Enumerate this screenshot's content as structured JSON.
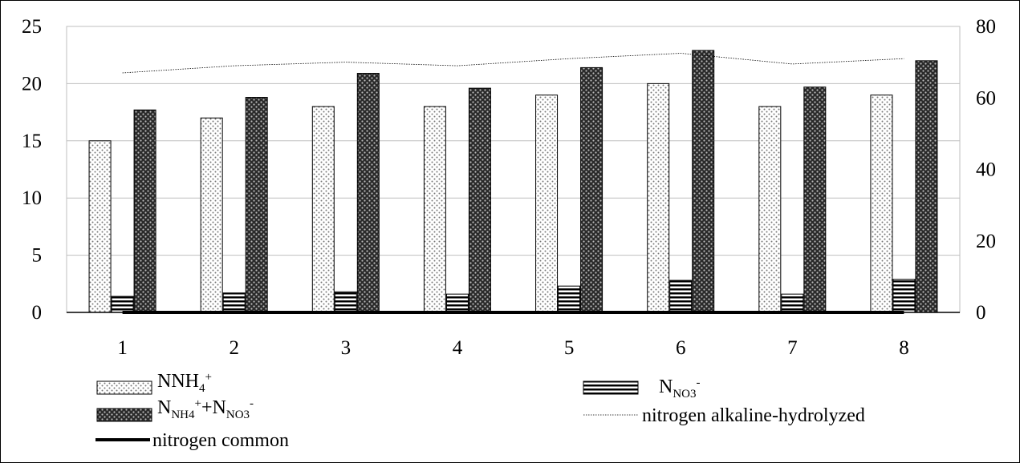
{
  "chart_data": {
    "type": "bar",
    "categories": [
      "1",
      "2",
      "3",
      "4",
      "5",
      "6",
      "7",
      "8"
    ],
    "y_left": {
      "ylim": [
        0,
        25
      ],
      "ticks": [
        "0",
        "5",
        "10",
        "15",
        "20",
        "25"
      ]
    },
    "y_right": {
      "ylim": [
        0,
        80
      ],
      "ticks": [
        "0",
        "20",
        "40",
        "60",
        "80"
      ]
    },
    "grid": "horizontal",
    "legend_position": "bottom",
    "series": [
      {
        "key": "nh4",
        "name": "NNH4+",
        "type": "bar",
        "axis": "left",
        "pattern": "dots-light",
        "values": [
          15,
          17,
          18,
          18,
          19,
          20,
          18,
          19
        ]
      },
      {
        "key": "no3",
        "name": "NNO3-",
        "type": "bar",
        "axis": "left",
        "pattern": "stripes",
        "values": [
          1.4,
          1.7,
          1.8,
          1.6,
          2.3,
          2.8,
          1.6,
          2.9
        ]
      },
      {
        "key": "sum",
        "name": "NNH4++NNO3-",
        "type": "bar",
        "axis": "left",
        "pattern": "dots-dark",
        "values": [
          17.7,
          18.8,
          20.9,
          19.6,
          21.4,
          22.9,
          19.7,
          22.0
        ]
      },
      {
        "key": "alk",
        "name": "nitrogen alkaline-hydrolyzed",
        "type": "line",
        "axis": "right",
        "style": "dotted-thin",
        "values": [
          67,
          69,
          70,
          69,
          71,
          72.5,
          69.5,
          71
        ]
      },
      {
        "key": "common",
        "name": "nitrogen common",
        "type": "line",
        "axis": "right",
        "style": "solid-thick",
        "values": [
          0,
          0,
          0,
          0,
          0,
          0,
          0,
          0
        ]
      }
    ],
    "legend": {
      "nh4": {
        "base": "NNH",
        "sub": "4",
        "sup": "+"
      },
      "no3": {
        "base": "N",
        "sub": "NO3",
        "sup": "-"
      },
      "sum": {
        "a": "N",
        "a_sub": "NH4",
        "a_sup": "+",
        "plus": "+N",
        "b_sub": "NO3",
        "b_sup": "-"
      },
      "alk": "nitrogen alkaline-hydrolyzed",
      "common": "nitrogen common"
    }
  }
}
